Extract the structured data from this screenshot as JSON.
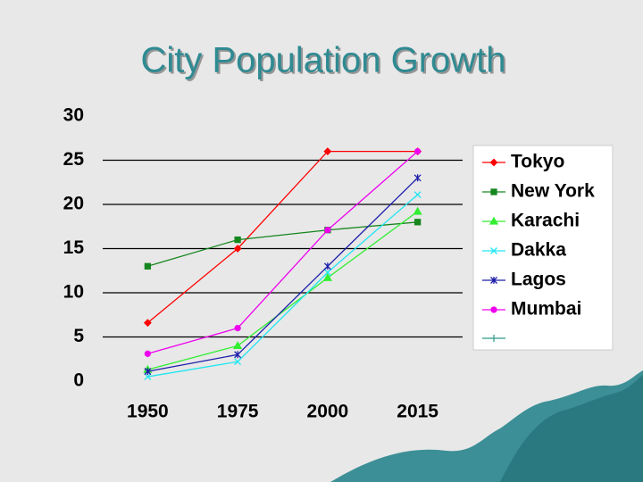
{
  "chart_data": {
    "type": "line",
    "title": "City Population Growth",
    "categories": [
      "1950",
      "1975",
      "2000",
      "2015"
    ],
    "series": [
      {
        "name": "Tokyo",
        "color": "#ff0000",
        "values": [
          6.6,
          15,
          26,
          26
        ]
      },
      {
        "name": "New York",
        "color": "#16861e",
        "values": [
          13,
          16,
          17.1,
          18
        ]
      },
      {
        "name": "Karachi",
        "color": "#33ee33",
        "values": [
          1.3,
          4,
          11.7,
          19.2
        ]
      },
      {
        "name": "Dakka",
        "color": "#22e6f0",
        "values": [
          0.5,
          2.2,
          12.3,
          21.1
        ]
      },
      {
        "name": "Lagos",
        "color": "#1c1caa",
        "values": [
          1.1,
          3,
          13,
          23
        ]
      },
      {
        "name": "Mumbai",
        "color": "#ee00ee",
        "values": [
          3.1,
          6,
          17.1,
          26
        ]
      }
    ],
    "ylim": [
      0,
      30
    ],
    "yticks": [
      0,
      5,
      10,
      15,
      20,
      25,
      30
    ],
    "grid": true
  }
}
